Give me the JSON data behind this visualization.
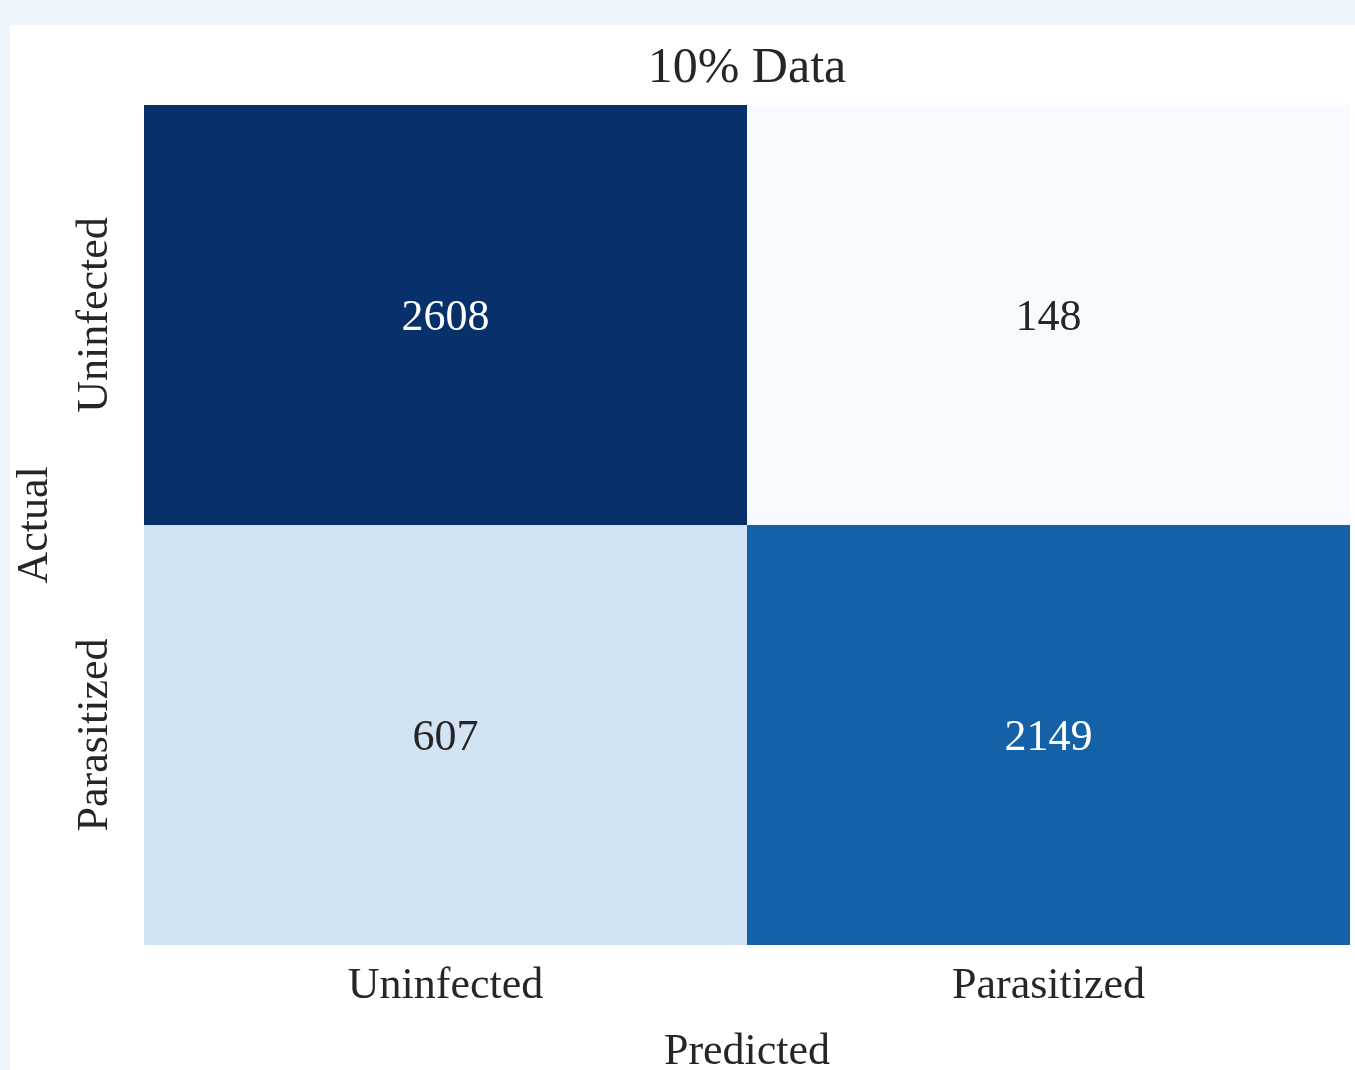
{
  "chart_data": {
    "type": "heatmap",
    "title": "10% Data",
    "xlabel": "Predicted",
    "ylabel": "Actual",
    "categories": [
      "Uninfected",
      "Parasitized"
    ],
    "y_categories": [
      "Uninfected",
      "Parasitized"
    ],
    "cells": [
      [
        2608,
        148
      ],
      [
        607,
        2149
      ]
    ],
    "data_labels": true
  }
}
